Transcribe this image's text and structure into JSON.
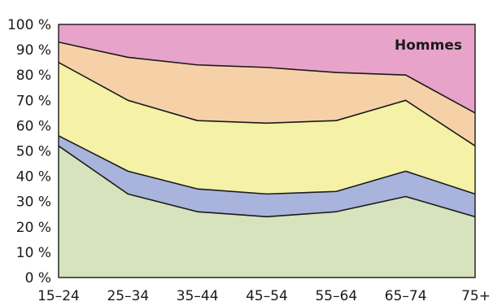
{
  "chart_data": {
    "type": "area",
    "stacked": true,
    "annotation": "Hommes",
    "x_labels": [
      "15–24",
      "25–34",
      "35–44",
      "45–54",
      "55–64",
      "65–74",
      "75+"
    ],
    "y_ticks": [
      "100 %",
      "90 %",
      "80 %",
      "70 %",
      "60 %",
      "50 %",
      "40 %",
      "30 %",
      "20 %",
      "10 %",
      "0 %"
    ],
    "ylim": [
      0,
      100
    ],
    "grid": true,
    "boundaries": [
      [
        52,
        33,
        26,
        24,
        26,
        32,
        24
      ],
      [
        56,
        42,
        35,
        33,
        34,
        42,
        33
      ],
      [
        85,
        70,
        62,
        61,
        62,
        70,
        52
      ],
      [
        93,
        87,
        84,
        83,
        81,
        80,
        65
      ]
    ],
    "band_colors": [
      "#d6e3bd",
      "#a9b4dc",
      "#f5f1a6",
      "#f6d1a8",
      "#e7a3c9"
    ]
  }
}
